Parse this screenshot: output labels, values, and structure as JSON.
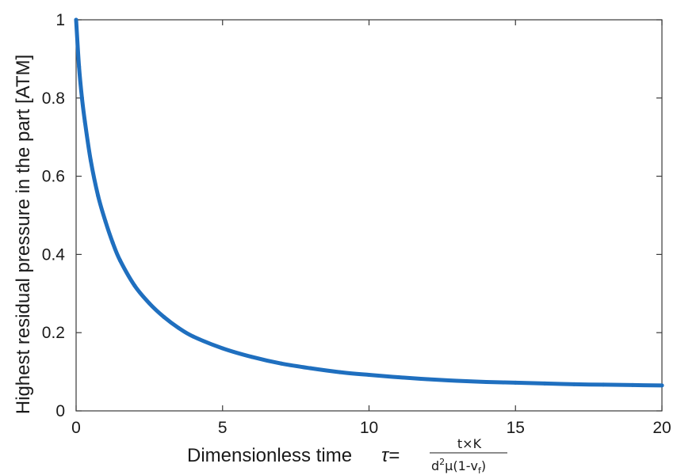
{
  "chart_data": {
    "type": "line",
    "title": "",
    "xlabel": "Dimensionless time",
    "xlabel_symbol": "τ=",
    "xlabel_fraction": {
      "numerator": "t×K",
      "denominator_base": "d",
      "denominator_exponent": "2",
      "denominator_rest": "μ(1-v",
      "denominator_subscript": "f",
      "denominator_close": ")"
    },
    "ylabel": "Highest residual pressure in the part [ATM]",
    "xlim": [
      0,
      20
    ],
    "ylim": [
      0,
      1
    ],
    "xticks": [
      0,
      5,
      10,
      15,
      20
    ],
    "yticks": [
      0,
      0.2,
      0.4,
      0.6,
      0.8,
      1
    ],
    "xtick_labels": [
      "0",
      "5",
      "10",
      "15",
      "20"
    ],
    "ytick_labels": [
      "0",
      "0.2",
      "0.4",
      "0.6",
      "0.8",
      "1"
    ],
    "grid": false,
    "series": [
      {
        "color": "#1f6fbf",
        "x": [
          0,
          0.1,
          0.2,
          0.3,
          0.5,
          0.75,
          1,
          1.25,
          1.5,
          2,
          2.5,
          3,
          3.5,
          4,
          5,
          6,
          7,
          8,
          9,
          10,
          11,
          12,
          13,
          14,
          15,
          16,
          17,
          18,
          19,
          20
        ],
        "y": [
          1.0,
          0.88,
          0.8,
          0.74,
          0.64,
          0.55,
          0.485,
          0.43,
          0.385,
          0.32,
          0.275,
          0.24,
          0.212,
          0.19,
          0.16,
          0.138,
          0.121,
          0.109,
          0.099,
          0.092,
          0.086,
          0.081,
          0.077,
          0.074,
          0.072,
          0.07,
          0.068,
          0.067,
          0.066,
          0.065
        ]
      }
    ]
  }
}
